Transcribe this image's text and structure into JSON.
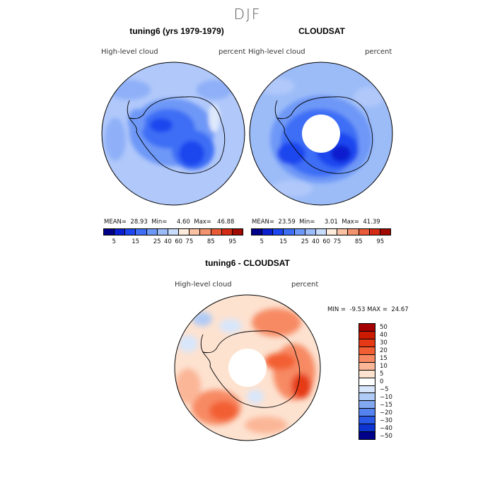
{
  "season": "DJF",
  "colors": {
    "seq": [
      "#000088",
      "#0a1fcf",
      "#1c46ef",
      "#3d6ef5",
      "#6e98f7",
      "#9cbcf8",
      "#c8dcfb",
      "#fdebdc",
      "#fbc1a3",
      "#f2936f",
      "#e85b36",
      "#d42c14",
      "#a00a00"
    ],
    "div": [
      "#a50000",
      "#cc1b00",
      "#e63a16",
      "#f25e33",
      "#f78a63",
      "#fbb697",
      "#fde2d0",
      "#ffffff",
      "#d8e6fb",
      "#b0cbf6",
      "#83a8f2",
      "#5482ee",
      "#2a59e8",
      "#0d33d0",
      "#000088"
    ],
    "land": "#000000"
  },
  "chart_data": [
    {
      "type": "heatmap",
      "title": "tuning6 (yrs 1979-1979)",
      "variable": "High-level cloud",
      "units": "percent",
      "projection": "south-polar-stereographic",
      "stats": {
        "mean": "28.93",
        "min": "4.60",
        "max": "46.88"
      },
      "colorbar_ticks": [
        "5",
        "15",
        "25",
        "40",
        "60",
        "75",
        "85",
        "95"
      ]
    },
    {
      "type": "heatmap",
      "title": "CLOUDSAT",
      "variable": "High-level cloud",
      "units": "percent",
      "projection": "south-polar-stereographic",
      "stats": {
        "mean": "23.59",
        "min": "3.01",
        "max": "41.39"
      },
      "colorbar_ticks": [
        "5",
        "15",
        "25",
        "40",
        "60",
        "75",
        "85",
        "95"
      ]
    },
    {
      "type": "heatmap",
      "title": "tuning6 - CLOUDSAT",
      "variable": "High-level cloud",
      "units": "percent",
      "projection": "south-polar-stereographic",
      "stats": {
        "min": "-9.53",
        "max": "24.67"
      },
      "colorbar_ticks": [
        "50",
        "40",
        "30",
        "20",
        "15",
        "10",
        "5",
        "0",
        "−5",
        "−10",
        "−15",
        "−20",
        "−30",
        "−40",
        "−50"
      ]
    }
  ],
  "labels": {
    "mean": "MEAN=",
    "min": "Min=",
    "max": "Max=",
    "min_caps": "MIN =",
    "max_caps": "MAX ="
  }
}
